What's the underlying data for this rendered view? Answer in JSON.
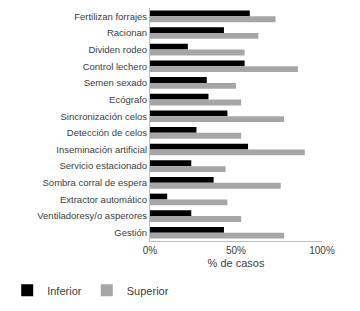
{
  "chart_data": {
    "type": "bar",
    "orientation": "horizontal",
    "categories": [
      "Fertilizan forrajes",
      "Racionan",
      "Dividen rodeo",
      "Control lechero",
      "Semen sexado",
      "Ecógrafo",
      "Sincronización celos",
      "Detección de celos",
      "Inseminación artificial",
      "Servicio estacionado",
      "Sombra corral de espera",
      "Extractor automático",
      "Ventiladoresy/o asperores",
      "Gestión"
    ],
    "series": [
      {
        "name": "Inferior",
        "color": "#000000",
        "values": [
          58,
          43,
          22,
          55,
          33,
          34,
          45,
          27,
          57,
          24,
          37,
          10,
          24,
          43
        ]
      },
      {
        "name": "Superior",
        "color": "#a6a6a6",
        "values": [
          73,
          63,
          55,
          86,
          50,
          53,
          78,
          53,
          90,
          44,
          76,
          45,
          53,
          78
        ]
      }
    ],
    "x_label": "% de casos",
    "xlim": [
      0,
      100
    ],
    "xticks": [
      {
        "value": 0,
        "label": "0%"
      },
      {
        "value": 50,
        "label": "50%"
      },
      {
        "value": 100,
        "label": "100%"
      }
    ],
    "grid": false,
    "legend": "bottom-left"
  }
}
